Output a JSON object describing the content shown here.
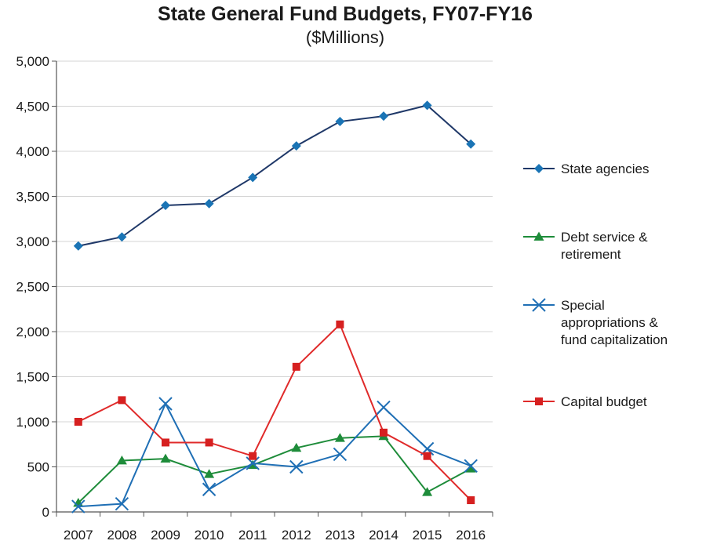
{
  "chart_data": {
    "type": "line",
    "title": "State General Fund Budgets, FY07-FY16",
    "subtitle": "($Millions)",
    "xlabel": "",
    "ylabel": "",
    "categories": [
      "2007",
      "2008",
      "2009",
      "2010",
      "2011",
      "2012",
      "2013",
      "2014",
      "2015",
      "2016"
    ],
    "ylim": [
      0,
      5000
    ],
    "yticks": [
      0,
      500,
      1000,
      1500,
      2000,
      2500,
      3000,
      3500,
      4000,
      4500,
      5000
    ],
    "ytick_labels": [
      "0",
      "500",
      "1,000",
      "1,500",
      "2,000",
      "2,500",
      "3,000",
      "3,500",
      "4,000",
      "4,500",
      "5,000"
    ],
    "grid": true,
    "legend_position": "right",
    "series": [
      {
        "name": "State agencies",
        "legend_lines": [
          "State agencies"
        ],
        "color": "#1f3868",
        "marker_color": "#1a74b5",
        "marker": "diamond",
        "values": [
          2950,
          3050,
          3400,
          3420,
          3710,
          4060,
          4330,
          4390,
          4510,
          4080
        ]
      },
      {
        "name": "Debt service & retirement",
        "legend_lines": [
          "Debt service &",
          "retirement"
        ],
        "color": "#1e8c3a",
        "marker_color": "#1e8c3a",
        "marker": "triangle",
        "values": [
          100,
          570,
          590,
          420,
          520,
          710,
          820,
          840,
          220,
          480
        ]
      },
      {
        "name": "Special appropriations & fund capitalization",
        "legend_lines": [
          "Special",
          "appropriations &",
          "fund capitalization"
        ],
        "color": "#1f6fb5",
        "marker_color": "#1f6fb5",
        "marker": "x",
        "values": [
          60,
          90,
          1200,
          250,
          540,
          500,
          640,
          1160,
          700,
          510
        ]
      },
      {
        "name": "Capital budget",
        "legend_lines": [
          "Capital budget"
        ],
        "color": "#e02a2a",
        "marker_color": "#d62020",
        "marker": "square",
        "values": [
          1000,
          1240,
          770,
          770,
          620,
          1610,
          2080,
          880,
          620,
          130
        ]
      }
    ]
  }
}
